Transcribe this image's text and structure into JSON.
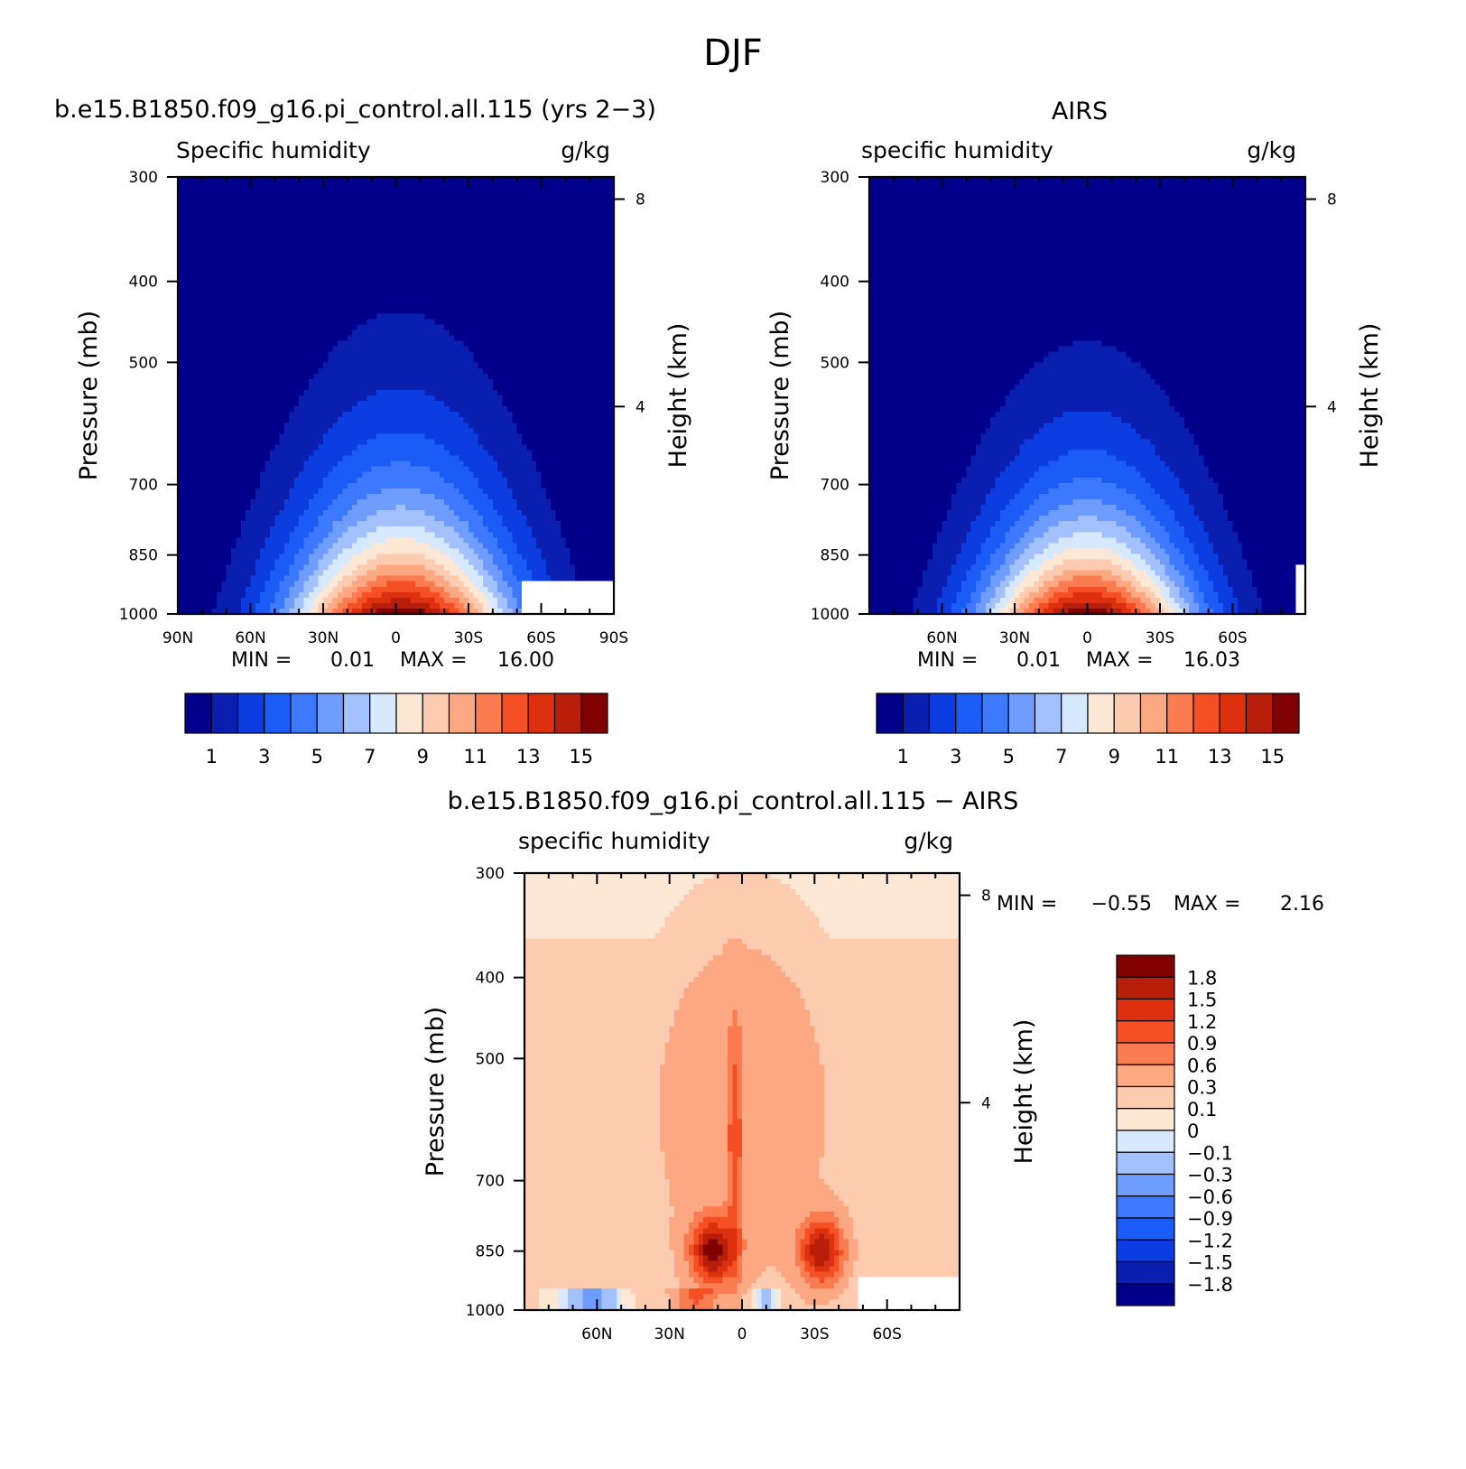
{
  "title": "DJF",
  "panels": [
    {
      "title": "b.e15.B1850.f09_g16.pi_control.all.115 (yrs 2−3)",
      "left_label": "Specific humidity",
      "right_label": "g/kg",
      "stats": {
        "min_label": "MIN =",
        "min_value": "0.01",
        "max_label": "MAX =",
        "max_value": "16.00"
      }
    },
    {
      "title": "AIRS",
      "left_label": "specific humidity",
      "right_label": "g/kg",
      "stats": {
        "min_label": "MIN =",
        "min_value": "0.01",
        "max_label": "MAX =",
        "max_value": "16.03"
      }
    },
    {
      "title": "b.e15.B1850.f09_g16.pi_control.all.115 − AIRS",
      "left_label": "specific humidity",
      "right_label": "g/kg",
      "stats": {
        "min_label": "MIN =",
        "min_value": "−0.55",
        "max_label": "MAX =",
        "max_value": "2.16"
      }
    }
  ],
  "chart_data": [
    {
      "type": "heatmap",
      "title": "b.e15.B1850.f09_g16.pi_control.all.115 (yrs 2−3)",
      "xlabel": "",
      "ylabel": "Pressure (mb)",
      "ylabel_right": "Height (km)",
      "units": "g/kg",
      "x_range": [
        90,
        -90
      ],
      "y_range": [
        1000,
        300
      ],
      "y_scale": "log",
      "x_ticks": [
        90,
        60,
        30,
        0,
        -30,
        -60,
        -90
      ],
      "x_tick_labels": [
        "90N",
        "60N",
        "30N",
        "0",
        "30S",
        "60S",
        "90S"
      ],
      "y_ticks": [
        300,
        400,
        500,
        700,
        850,
        1000
      ],
      "y_tick_labels": [
        "300",
        "400",
        "500",
        "700",
        "850",
        "1000"
      ],
      "right_ticks": [
        8,
        4
      ],
      "right_tick_labels": [
        "8",
        "4"
      ],
      "levels": [
        1,
        2,
        3,
        4,
        5,
        6,
        7,
        8,
        9,
        10,
        11,
        12,
        13,
        14,
        15
      ],
      "colorbar_labels": [
        "1",
        "3",
        "5",
        "7",
        "9",
        "11",
        "13",
        "15"
      ],
      "colorbar_orientation": "horizontal",
      "min": 0.01,
      "max": 16.0,
      "field": {
        "peak_lat": -2,
        "peak_value": 16.0,
        "lat_width": 33,
        "scale_height_log": 0.3,
        "missing_south_of": -52,
        "missing_below_p": 920
      }
    },
    {
      "type": "heatmap",
      "title": "AIRS",
      "xlabel": "",
      "ylabel": "Pressure (mb)",
      "ylabel_right": "Height (km)",
      "units": "g/kg",
      "x_range": [
        90,
        -90
      ],
      "y_range": [
        1000,
        300
      ],
      "y_scale": "log",
      "x_ticks": [
        60,
        30,
        0,
        -30,
        -60
      ],
      "x_tick_labels": [
        "60N",
        "30N",
        "0",
        "30S",
        "60S"
      ],
      "y_ticks": [
        300,
        400,
        500,
        700,
        850,
        1000
      ],
      "y_tick_labels": [
        "300",
        "400",
        "500",
        "700",
        "850",
        "1000"
      ],
      "right_ticks": [
        8,
        4
      ],
      "right_tick_labels": [
        "8",
        "4"
      ],
      "levels": [
        1,
        2,
        3,
        4,
        5,
        6,
        7,
        8,
        9,
        10,
        11,
        12,
        13,
        14,
        15
      ],
      "colorbar_labels": [
        "1",
        "3",
        "5",
        "7",
        "9",
        "11",
        "13",
        "15"
      ],
      "colorbar_orientation": "horizontal",
      "min": 0.01,
      "max": 16.03,
      "field": {
        "peak_lat": 0,
        "peak_value": 16.03,
        "lat_width": 31,
        "scale_height_log": 0.27,
        "missing_south_of": -86,
        "missing_below_p": 870
      }
    },
    {
      "type": "heatmap",
      "title": "b.e15.B1850.f09_g16.pi_control.all.115 − AIRS",
      "xlabel": "",
      "ylabel": "Pressure (mb)",
      "ylabel_right": "Height (km)",
      "units": "g/kg",
      "x_range": [
        90,
        -90
      ],
      "y_range": [
        1000,
        300
      ],
      "y_scale": "log",
      "x_ticks": [
        60,
        30,
        0,
        -30,
        -60
      ],
      "x_tick_labels": [
        "60N",
        "30N",
        "0",
        "30S",
        "60S"
      ],
      "y_ticks": [
        300,
        400,
        500,
        700,
        850,
        1000
      ],
      "y_tick_labels": [
        "300",
        "400",
        "500",
        "700",
        "850",
        "1000"
      ],
      "right_ticks": [
        8,
        4
      ],
      "right_tick_labels": [
        "8",
        "4"
      ],
      "levels": [
        -1.8,
        -1.5,
        -1.2,
        -0.9,
        -0.6,
        -0.3,
        -0.1,
        0,
        0.1,
        0.3,
        0.6,
        0.9,
        1.2,
        1.5,
        1.8
      ],
      "colorbar_labels": [
        "1.8",
        "1.5",
        "1.2",
        "0.9",
        "0.6",
        "0.3",
        "0.1",
        "0",
        "−0.1",
        "−0.3",
        "−0.6",
        "−0.9",
        "−1.2",
        "−1.5",
        "−1.8"
      ],
      "colorbar_orientation": "vertical",
      "min": -0.55,
      "max": 2.16,
      "field": {
        "maxima": [
          {
            "lat": 12,
            "p": 850,
            "value": 2.1
          },
          {
            "lat": -33,
            "p": 850,
            "value": 1.95
          }
        ],
        "missing_south_of": -48,
        "missing_below_p": 920
      }
    }
  ],
  "palette": {
    "sequential": [
      "#00008b",
      "#0a1fb0",
      "#0b3de0",
      "#1a5cf5",
      "#3c79ff",
      "#6e9cff",
      "#a4c1ff",
      "#d7e9ff",
      "#fde8d6",
      "#fdcbb0",
      "#fca882",
      "#fb7c50",
      "#f54f26",
      "#dc300e",
      "#b81f0a",
      "#800000"
    ],
    "diverging": [
      "#00008b",
      "#0a1fb0",
      "#0b3de0",
      "#1a5cf5",
      "#3c79ff",
      "#6e9cff",
      "#a4c1ff",
      "#d7e9ff",
      "#fde8d6",
      "#fdcbb0",
      "#fca882",
      "#fb7c50",
      "#f54f26",
      "#dc300e",
      "#b81f0a",
      "#800000"
    ],
    "missing": "#ffffff"
  }
}
